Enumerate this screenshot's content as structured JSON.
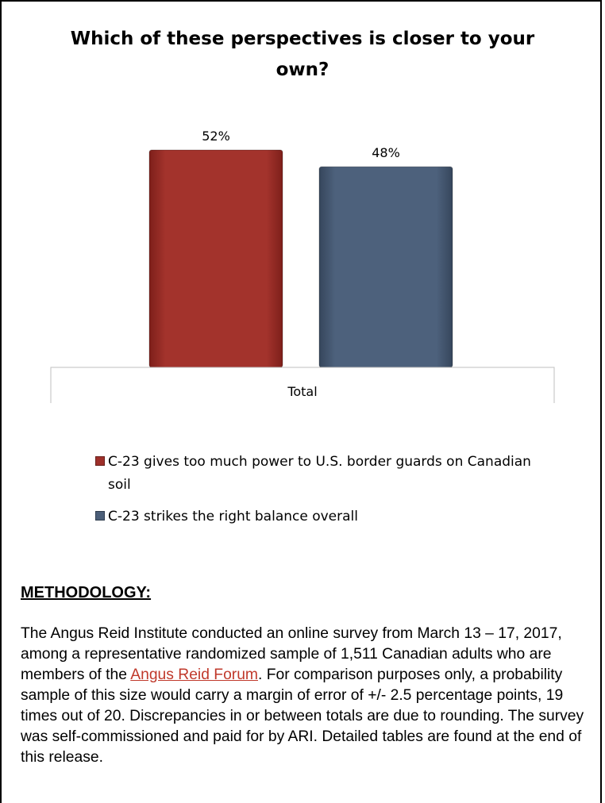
{
  "chart_data": {
    "type": "bar",
    "title": "Which of these perspectives is closer to your own?",
    "categories": [
      "Total"
    ],
    "ylim": [
      0,
      60
    ],
    "grid": false,
    "legend_position": "bottom",
    "series": [
      {
        "name": "C-23 gives too much power to U.S. border guards on Canadian soil",
        "values": [
          52
        ],
        "color": "#9e302a",
        "label": "52%"
      },
      {
        "name": "C-23 strikes the right balance overall",
        "values": [
          48
        ],
        "color": "#4b5e78",
        "label": "48%"
      }
    ]
  },
  "methodology": {
    "heading": "METHODOLOGY:",
    "body_part1": "The Angus Reid Institute conducted an online survey from March 13 – 17, 2017, among a representative randomized sample of 1,511 Canadian adults who are members of the ",
    "link_text": "Angus Reid Forum",
    "body_part2": ". For comparison purposes only, a probability sample of this size would carry a margin of error of +/- 2.5 percentage points, 19 times out of 20. Discrepancies in or between totals are due to rounding. The survey was self-commissioned and paid for by ARI. Detailed tables are found at the end of this release."
  }
}
